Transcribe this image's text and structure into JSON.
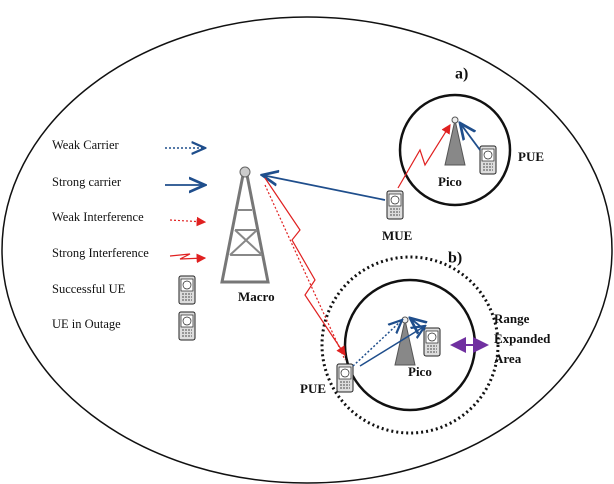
{
  "legend": [
    {
      "label": "Weak Carrier"
    },
    {
      "label": "Strong carrier"
    },
    {
      "label": "Weak Interference"
    },
    {
      "label": "Strong Interference"
    },
    {
      "label": "Successful UE"
    },
    {
      "label": "UE in Outage"
    }
  ],
  "scenario_a": {
    "tag": "a)",
    "cell": "Pico",
    "pico_user": "PUE",
    "macro_user": "MUE"
  },
  "scenario_b": {
    "tag": "b)",
    "cell": "Pico",
    "pico_user": "PUE",
    "range": [
      "Range",
      "Expanded",
      "Area"
    ]
  },
  "macro": "Macro"
}
